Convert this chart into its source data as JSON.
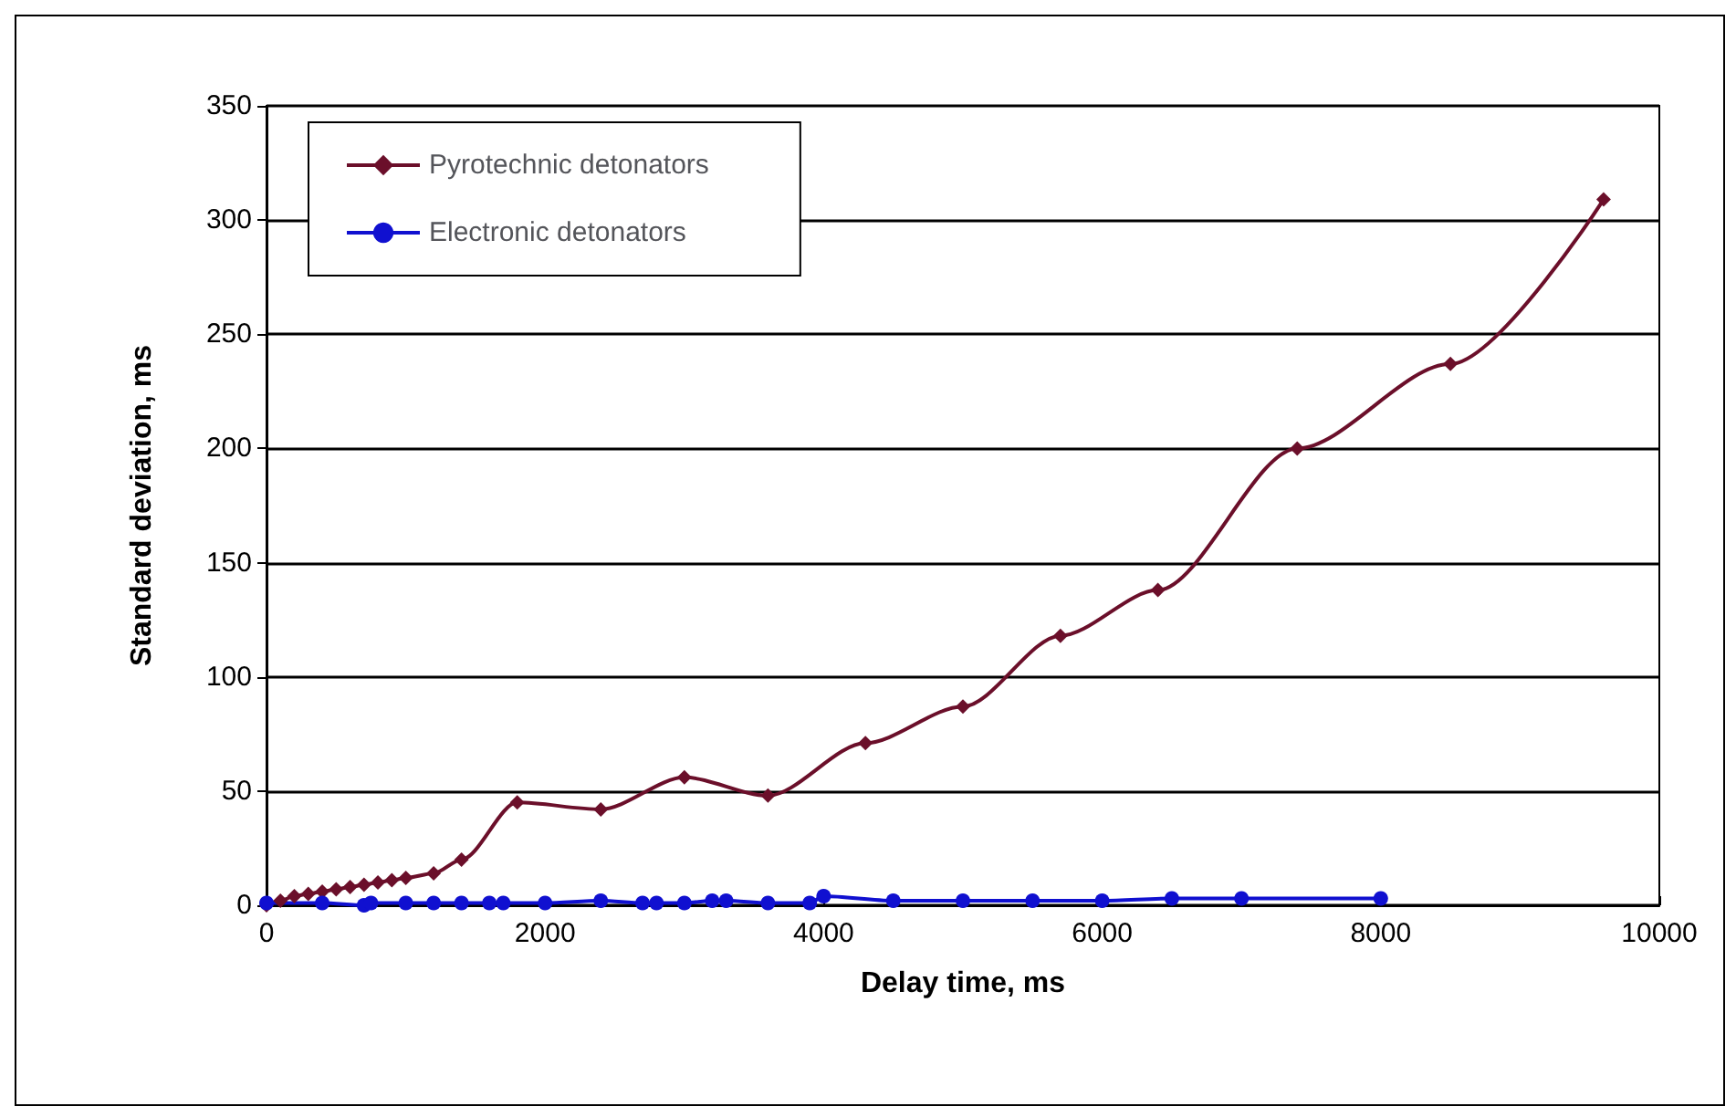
{
  "chart_data": {
    "type": "line",
    "xlabel": "Delay time, ms",
    "ylabel": "Standard deviation, ms",
    "xlim": [
      0,
      10000
    ],
    "xticks": [
      0,
      2000,
      4000,
      6000,
      8000,
      10000
    ],
    "ylim": [
      0,
      350
    ],
    "yticks": [
      0,
      50,
      100,
      150,
      200,
      250,
      300,
      350
    ],
    "grid": "y",
    "legend": "top left",
    "series": [
      {
        "name": "Pyrotechnic detonators",
        "color": "#6b0f2a",
        "marker": "diamond",
        "x": [
          0,
          100,
          200,
          300,
          400,
          500,
          600,
          700,
          800,
          900,
          1000,
          1200,
          1400,
          1800,
          2400,
          3000,
          3600,
          4300,
          5000,
          5700,
          6400,
          7400,
          8500,
          9600
        ],
        "values": [
          0,
          2,
          4,
          5,
          6,
          7,
          8,
          9,
          10,
          11,
          12,
          14,
          20,
          45,
          42,
          56,
          48,
          71,
          87,
          118,
          138,
          200,
          237,
          309
        ]
      },
      {
        "name": "Electronic detonators",
        "color": "#1010d0",
        "marker": "circle",
        "x": [
          0,
          400,
          700,
          750,
          1000,
          1200,
          1400,
          1600,
          1700,
          2000,
          2400,
          2700,
          2800,
          3000,
          3200,
          3300,
          3600,
          3900,
          4000,
          4500,
          5000,
          5500,
          6000,
          6500,
          7000,
          8000
        ],
        "values": [
          1,
          1,
          0,
          1,
          1,
          1,
          1,
          1,
          1,
          1,
          2,
          1,
          1,
          1,
          2,
          2,
          1,
          1,
          4,
          2,
          2,
          2,
          2,
          3,
          3,
          3
        ]
      }
    ]
  }
}
